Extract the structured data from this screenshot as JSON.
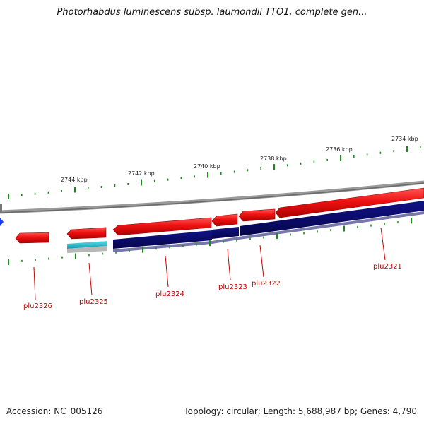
{
  "title": "Photorhabdus luminescens subsp. laumondii TTO1, complete gen...",
  "ruler_ticks": [
    "2744 kbp",
    "2742 kbp",
    "2740 kbp",
    "2738 kbp",
    "2736 kbp",
    "2734 kbp"
  ],
  "genes": [
    "plu2326",
    "plu2325",
    "plu2324",
    "plu2323",
    "plu2322",
    "plu2321"
  ],
  "footer": {
    "accession": "Accession: NC_005126",
    "summary": "Topology: circular; Length: 5,688,987 bp; Genes: 4,790"
  },
  "colors": {
    "feature_red": "#ee1111",
    "feature_navy": "#0a0a70",
    "feature_cyan": "#22bbcc",
    "tick_green": "#1a8a1a",
    "backbone_gray": "#808080",
    "label_red": "#cc0000"
  }
}
